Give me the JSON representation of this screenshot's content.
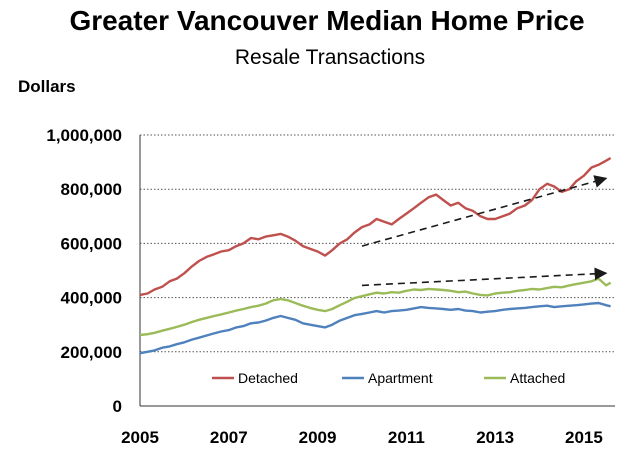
{
  "chart_data": {
    "type": "line",
    "title": "Greater Vancouver Median Home Price",
    "subtitle": "Resale Transactions",
    "ylabel": "Dollars",
    "xlabel": "",
    "xlim": [
      2005,
      2015.7
    ],
    "ylim": [
      0,
      1000000
    ],
    "x_ticks": [
      2005,
      2007,
      2009,
      2011,
      2013,
      2015
    ],
    "y_ticks": [
      0,
      200000,
      400000,
      600000,
      800000,
      1000000
    ],
    "y_tick_labels": [
      "0",
      "200,000",
      "400,000",
      "600,000",
      "800,000",
      "1,000,000"
    ],
    "grid": "horizontal dotted",
    "legend_position": "bottom-inside",
    "series": [
      {
        "name": "Detached",
        "color": "#c0504d",
        "x": [
          2005.0,
          2005.17,
          2005.33,
          2005.5,
          2005.67,
          2005.83,
          2006.0,
          2006.17,
          2006.33,
          2006.5,
          2006.67,
          2006.83,
          2007.0,
          2007.17,
          2007.33,
          2007.5,
          2007.67,
          2007.83,
          2008.0,
          2008.17,
          2008.33,
          2008.5,
          2008.67,
          2008.83,
          2009.0,
          2009.17,
          2009.33,
          2009.5,
          2009.67,
          2009.83,
          2010.0,
          2010.17,
          2010.33,
          2010.5,
          2010.67,
          2010.83,
          2011.0,
          2011.17,
          2011.33,
          2011.5,
          2011.67,
          2011.83,
          2012.0,
          2012.17,
          2012.33,
          2012.5,
          2012.67,
          2012.83,
          2013.0,
          2013.17,
          2013.33,
          2013.5,
          2013.67,
          2013.83,
          2014.0,
          2014.17,
          2014.33,
          2014.5,
          2014.67,
          2014.83,
          2015.0,
          2015.17,
          2015.33,
          2015.5,
          2015.6
        ],
        "values": [
          410000,
          415000,
          430000,
          440000,
          460000,
          470000,
          490000,
          515000,
          535000,
          550000,
          560000,
          570000,
          575000,
          590000,
          600000,
          620000,
          615000,
          625000,
          630000,
          635000,
          625000,
          610000,
          590000,
          580000,
          570000,
          555000,
          575000,
          600000,
          615000,
          640000,
          660000,
          670000,
          690000,
          680000,
          670000,
          690000,
          710000,
          730000,
          750000,
          770000,
          780000,
          760000,
          740000,
          750000,
          730000,
          720000,
          700000,
          690000,
          690000,
          700000,
          710000,
          730000,
          740000,
          760000,
          800000,
          820000,
          810000,
          790000,
          800000,
          830000,
          850000,
          880000,
          890000,
          905000,
          915000
        ]
      },
      {
        "name": "Apartment",
        "color": "#4f81bd",
        "x": [
          2005.0,
          2005.17,
          2005.33,
          2005.5,
          2005.67,
          2005.83,
          2006.0,
          2006.17,
          2006.33,
          2006.5,
          2006.67,
          2006.83,
          2007.0,
          2007.17,
          2007.33,
          2007.5,
          2007.67,
          2007.83,
          2008.0,
          2008.17,
          2008.33,
          2008.5,
          2008.67,
          2008.83,
          2009.0,
          2009.17,
          2009.33,
          2009.5,
          2009.67,
          2009.83,
          2010.0,
          2010.17,
          2010.33,
          2010.5,
          2010.67,
          2010.83,
          2011.0,
          2011.17,
          2011.33,
          2011.5,
          2011.67,
          2011.83,
          2012.0,
          2012.17,
          2012.33,
          2012.5,
          2012.67,
          2012.83,
          2013.0,
          2013.17,
          2013.33,
          2013.5,
          2013.67,
          2013.83,
          2014.0,
          2014.17,
          2014.33,
          2014.5,
          2014.67,
          2014.83,
          2015.0,
          2015.17,
          2015.33,
          2015.5,
          2015.6
        ],
        "values": [
          195000,
          200000,
          205000,
          215000,
          220000,
          228000,
          235000,
          245000,
          252000,
          260000,
          268000,
          275000,
          280000,
          290000,
          295000,
          305000,
          308000,
          315000,
          325000,
          332000,
          325000,
          318000,
          305000,
          300000,
          295000,
          290000,
          300000,
          315000,
          325000,
          335000,
          340000,
          345000,
          350000,
          345000,
          350000,
          352000,
          355000,
          360000,
          365000,
          362000,
          360000,
          358000,
          355000,
          358000,
          352000,
          350000,
          345000,
          348000,
          350000,
          355000,
          358000,
          360000,
          362000,
          365000,
          368000,
          370000,
          365000,
          368000,
          370000,
          372000,
          375000,
          378000,
          380000,
          372000,
          368000
        ]
      },
      {
        "name": "Attached",
        "color": "#9bbb59",
        "x": [
          2005.0,
          2005.17,
          2005.33,
          2005.5,
          2005.67,
          2005.83,
          2006.0,
          2006.17,
          2006.33,
          2006.5,
          2006.67,
          2006.83,
          2007.0,
          2007.17,
          2007.33,
          2007.5,
          2007.67,
          2007.83,
          2008.0,
          2008.17,
          2008.33,
          2008.5,
          2008.67,
          2008.83,
          2009.0,
          2009.17,
          2009.33,
          2009.5,
          2009.67,
          2009.83,
          2010.0,
          2010.17,
          2010.33,
          2010.5,
          2010.67,
          2010.83,
          2011.0,
          2011.17,
          2011.33,
          2011.5,
          2011.67,
          2011.83,
          2012.0,
          2012.17,
          2012.33,
          2012.5,
          2012.67,
          2012.83,
          2013.0,
          2013.17,
          2013.33,
          2013.5,
          2013.67,
          2013.83,
          2014.0,
          2014.17,
          2014.33,
          2014.5,
          2014.67,
          2014.83,
          2015.0,
          2015.17,
          2015.33,
          2015.5,
          2015.6
        ],
        "values": [
          262000,
          265000,
          270000,
          278000,
          285000,
          292000,
          300000,
          310000,
          318000,
          325000,
          332000,
          338000,
          345000,
          352000,
          358000,
          365000,
          370000,
          378000,
          390000,
          395000,
          390000,
          380000,
          370000,
          362000,
          355000,
          350000,
          358000,
          372000,
          385000,
          398000,
          405000,
          412000,
          418000,
          415000,
          420000,
          418000,
          425000,
          430000,
          428000,
          432000,
          430000,
          428000,
          425000,
          420000,
          422000,
          415000,
          410000,
          408000,
          415000,
          418000,
          420000,
          425000,
          428000,
          432000,
          430000,
          435000,
          440000,
          438000,
          445000,
          450000,
          455000,
          460000,
          470000,
          445000,
          455000
        ]
      }
    ],
    "trend_arrows": [
      {
        "from": [
          2010.0,
          590000
        ],
        "to": [
          2015.5,
          840000
        ]
      },
      {
        "from": [
          2010.0,
          445000
        ],
        "to": [
          2015.5,
          490000
        ]
      }
    ]
  }
}
